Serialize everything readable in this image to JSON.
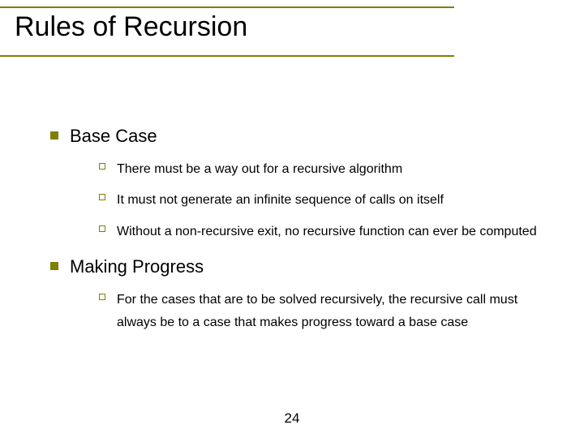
{
  "title": "Rules of Recursion",
  "colors": {
    "accent": "#808000",
    "text": "#000000",
    "background": "#ffffff"
  },
  "typography": {
    "title_fontsize": 34,
    "level1_fontsize": 22,
    "level2_fontsize": 16,
    "font_family": "Arial"
  },
  "bullets": [
    {
      "label": "Base Case",
      "sub": [
        "There must be a way out for a recursive algorithm",
        "It must not generate an infinite sequence of calls on itself",
        "Without a non-recursive exit, no recursive function can ever be computed"
      ]
    },
    {
      "label": "Making Progress",
      "sub": [
        "For the cases that are to be solved recursively, the recursive call must always be to a case that makes progress toward a base case"
      ]
    }
  ],
  "page_number": "24"
}
